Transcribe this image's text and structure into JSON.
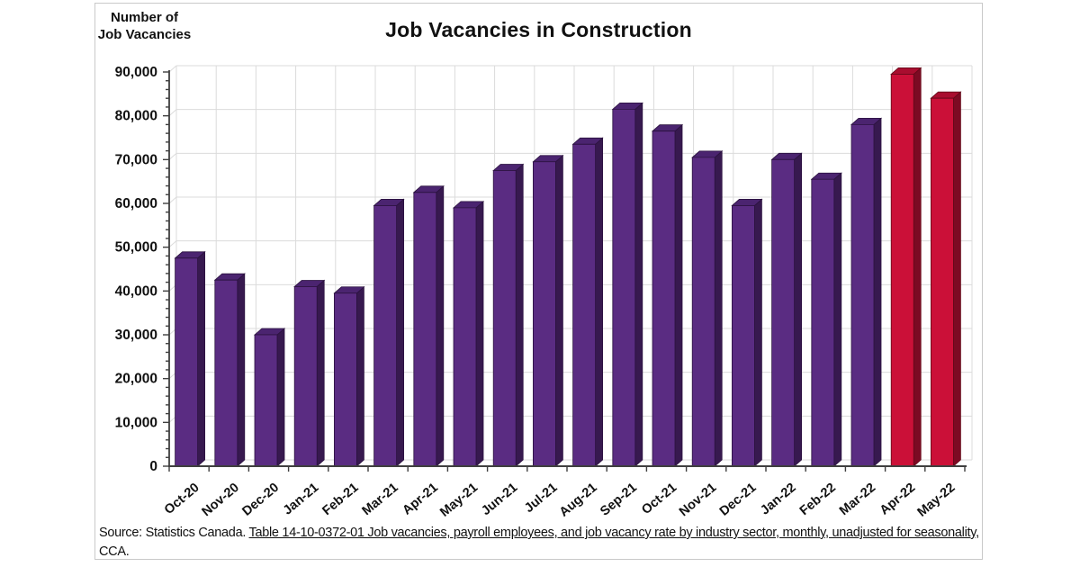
{
  "header": {
    "title": "Job Vacancies in Construction"
  },
  "y_axis_title": {
    "line1": "Number of",
    "line2": "Job Vacancies"
  },
  "footer": {
    "prefix": "Source: Statistics Canada. ",
    "link_text": "Table 14-10-0372-01  Job vacancies, payroll employees, and job vacancy rate by industry sector, monthly, unadjusted for seasonality,",
    "suffix": " CCA."
  },
  "colors": {
    "bar_purple_front": "#5A2C82",
    "bar_purple_top": "#4B2470",
    "bar_purple_side": "#37194F",
    "bar_purple_edge": "#2B123F",
    "bar_red_front": "#CB1038",
    "bar_red_top": "#A90D2F",
    "bar_red_side": "#7C0A23",
    "bar_red_edge": "#630818",
    "gridline": "#DBDBDB",
    "axis": "#3F3F3F",
    "text": "#111111"
  },
  "chart_data": {
    "type": "bar",
    "style": "3d-column",
    "title": "Job Vacancies in Construction",
    "xlabel": "",
    "ylabel": "Number of Job Vacancies",
    "categories": [
      "Oct-20",
      "Nov-20",
      "Dec-20",
      "Jan-21",
      "Feb-21",
      "Mar-21",
      "Apr-21",
      "May-21",
      "Jun-21",
      "Jul-21",
      "Aug-21",
      "Sep-21",
      "Oct-21",
      "Nov-21",
      "Dec-21",
      "Jan-22",
      "Feb-22",
      "Mar-22",
      "Apr-22",
      "May-22"
    ],
    "values": [
      47500,
      42500,
      30000,
      41000,
      39500,
      59500,
      62500,
      59000,
      67500,
      69500,
      73500,
      81500,
      76500,
      70500,
      59500,
      70000,
      65500,
      78000,
      89500,
      84000
    ],
    "highlight_categories": [
      "Apr-22",
      "May-22"
    ],
    "ylim": [
      0,
      90000
    ],
    "ytick_interval": 10000,
    "ytick_minor_interval": 2000,
    "grid": true,
    "legend": false
  }
}
